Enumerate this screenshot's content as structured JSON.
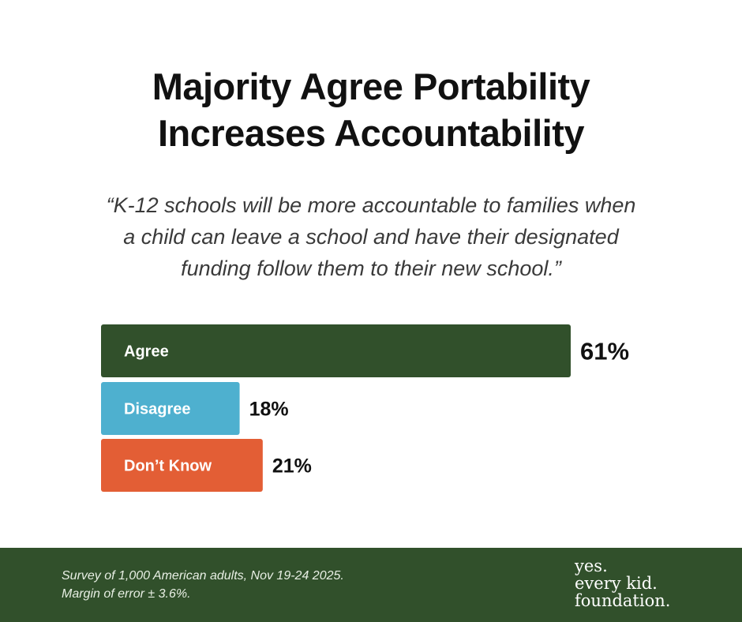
{
  "header": {
    "title_lines": [
      "Majority Agree Portability",
      "Increases Accountability"
    ]
  },
  "quote": {
    "lines": [
      "“K-12 schools will be more accountable to families when",
      "a child can leave a school and have their designated",
      "funding follow them to their new school.”"
    ]
  },
  "chart_data": {
    "type": "bar",
    "orientation": "horizontal",
    "title": "Majority Agree Portability Increases Accountability",
    "xlabel": "",
    "ylabel": "",
    "xlim": [
      0,
      100
    ],
    "grid": false,
    "categories": [
      "Agree",
      "Disagree",
      "Don’t Know"
    ],
    "values": [
      61,
      18,
      21
    ],
    "value_labels": [
      "61%",
      "18%",
      "21%"
    ],
    "colors": [
      "#31502b",
      "#4eb0cf",
      "#e35e35"
    ]
  },
  "footer": {
    "note_lines": [
      "Survey of 1,000 American adults, Nov 19-24 2025.",
      "Margin of error ± 3.6%."
    ],
    "logo_lines": [
      "yes.",
      "every kid.",
      "foundation."
    ],
    "background_color": "#31502b"
  }
}
